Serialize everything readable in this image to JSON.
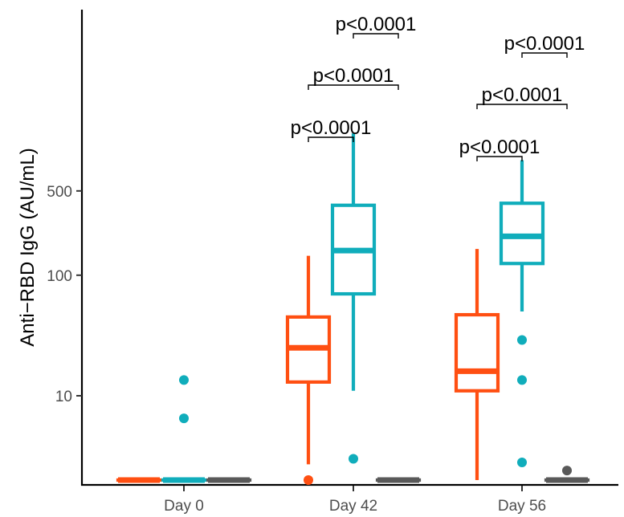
{
  "chart_data": {
    "type": "box",
    "title": "",
    "xlabel": "",
    "ylabel": "Anti−RBD IgG (AU/mL)",
    "y_scale": "log10",
    "ylim": [
      1.7,
      10000
    ],
    "y_ticks": [
      10,
      100,
      500
    ],
    "y_tick_labels": [
      "10",
      "100",
      "500"
    ],
    "categories": [
      "Day 0",
      "Day 42",
      "Day 56"
    ],
    "legend": "none",
    "grid": false,
    "colors": [
      "#ff4f12",
      "#10adbb",
      "#595959"
    ],
    "series": [
      {
        "color": "#ff4f12",
        "boxes": [
          {
            "category": "Day 0",
            "min": 2,
            "q1": 2,
            "median": 2,
            "q3": 2,
            "max": 2,
            "outliers": []
          },
          {
            "category": "Day 42",
            "min": 2.7,
            "q1": 13,
            "median": 25,
            "q3": 45,
            "max": 145,
            "outliers": [
              2
            ]
          },
          {
            "category": "Day 56",
            "min": 2,
            "q1": 11,
            "median": 16,
            "q3": 47,
            "max": 165,
            "outliers": []
          }
        ]
      },
      {
        "color": "#10adbb",
        "boxes": [
          {
            "category": "Day 0",
            "min": 2,
            "q1": 2,
            "median": 2,
            "q3": 2,
            "max": 2,
            "outliers": [
              6.5,
              13.5
            ]
          },
          {
            "category": "Day 42",
            "min": 11,
            "q1": 70,
            "median": 160,
            "q3": 380,
            "max": 1500,
            "outliers": [
              3
            ]
          },
          {
            "category": "Day 56",
            "min": 50,
            "q1": 125,
            "median": 210,
            "q3": 395,
            "max": 900,
            "outliers": [
              29,
              13.5,
              2.8
            ]
          }
        ]
      },
      {
        "color": "#595959",
        "boxes": [
          {
            "category": "Day 0",
            "min": 2,
            "q1": 2,
            "median": 2,
            "q3": 2,
            "max": 2,
            "outliers": []
          },
          {
            "category": "Day 42",
            "min": 2,
            "q1": 2,
            "median": 2,
            "q3": 2,
            "max": 2,
            "outliers": []
          },
          {
            "category": "Day 56",
            "min": 2,
            "q1": 2,
            "median": 2,
            "q3": 2,
            "max": 2,
            "outliers": [
              2.4
            ]
          }
        ]
      }
    ],
    "comparisons": [
      {
        "category": "Day 42",
        "from": 0,
        "to": 1,
        "label": "p<0.0001"
      },
      {
        "category": "Day 42",
        "from": 0,
        "to": 2,
        "label": "p<0.0001"
      },
      {
        "category": "Day 42",
        "from": 1,
        "to": 2,
        "label": "p<0.0001"
      },
      {
        "category": "Day 56",
        "from": 0,
        "to": 1,
        "label": "p<0.0001"
      },
      {
        "category": "Day 56",
        "from": 0,
        "to": 2,
        "label": "p<0.0001"
      },
      {
        "category": "Day 56",
        "from": 1,
        "to": 2,
        "label": "p<0.0001"
      }
    ]
  }
}
